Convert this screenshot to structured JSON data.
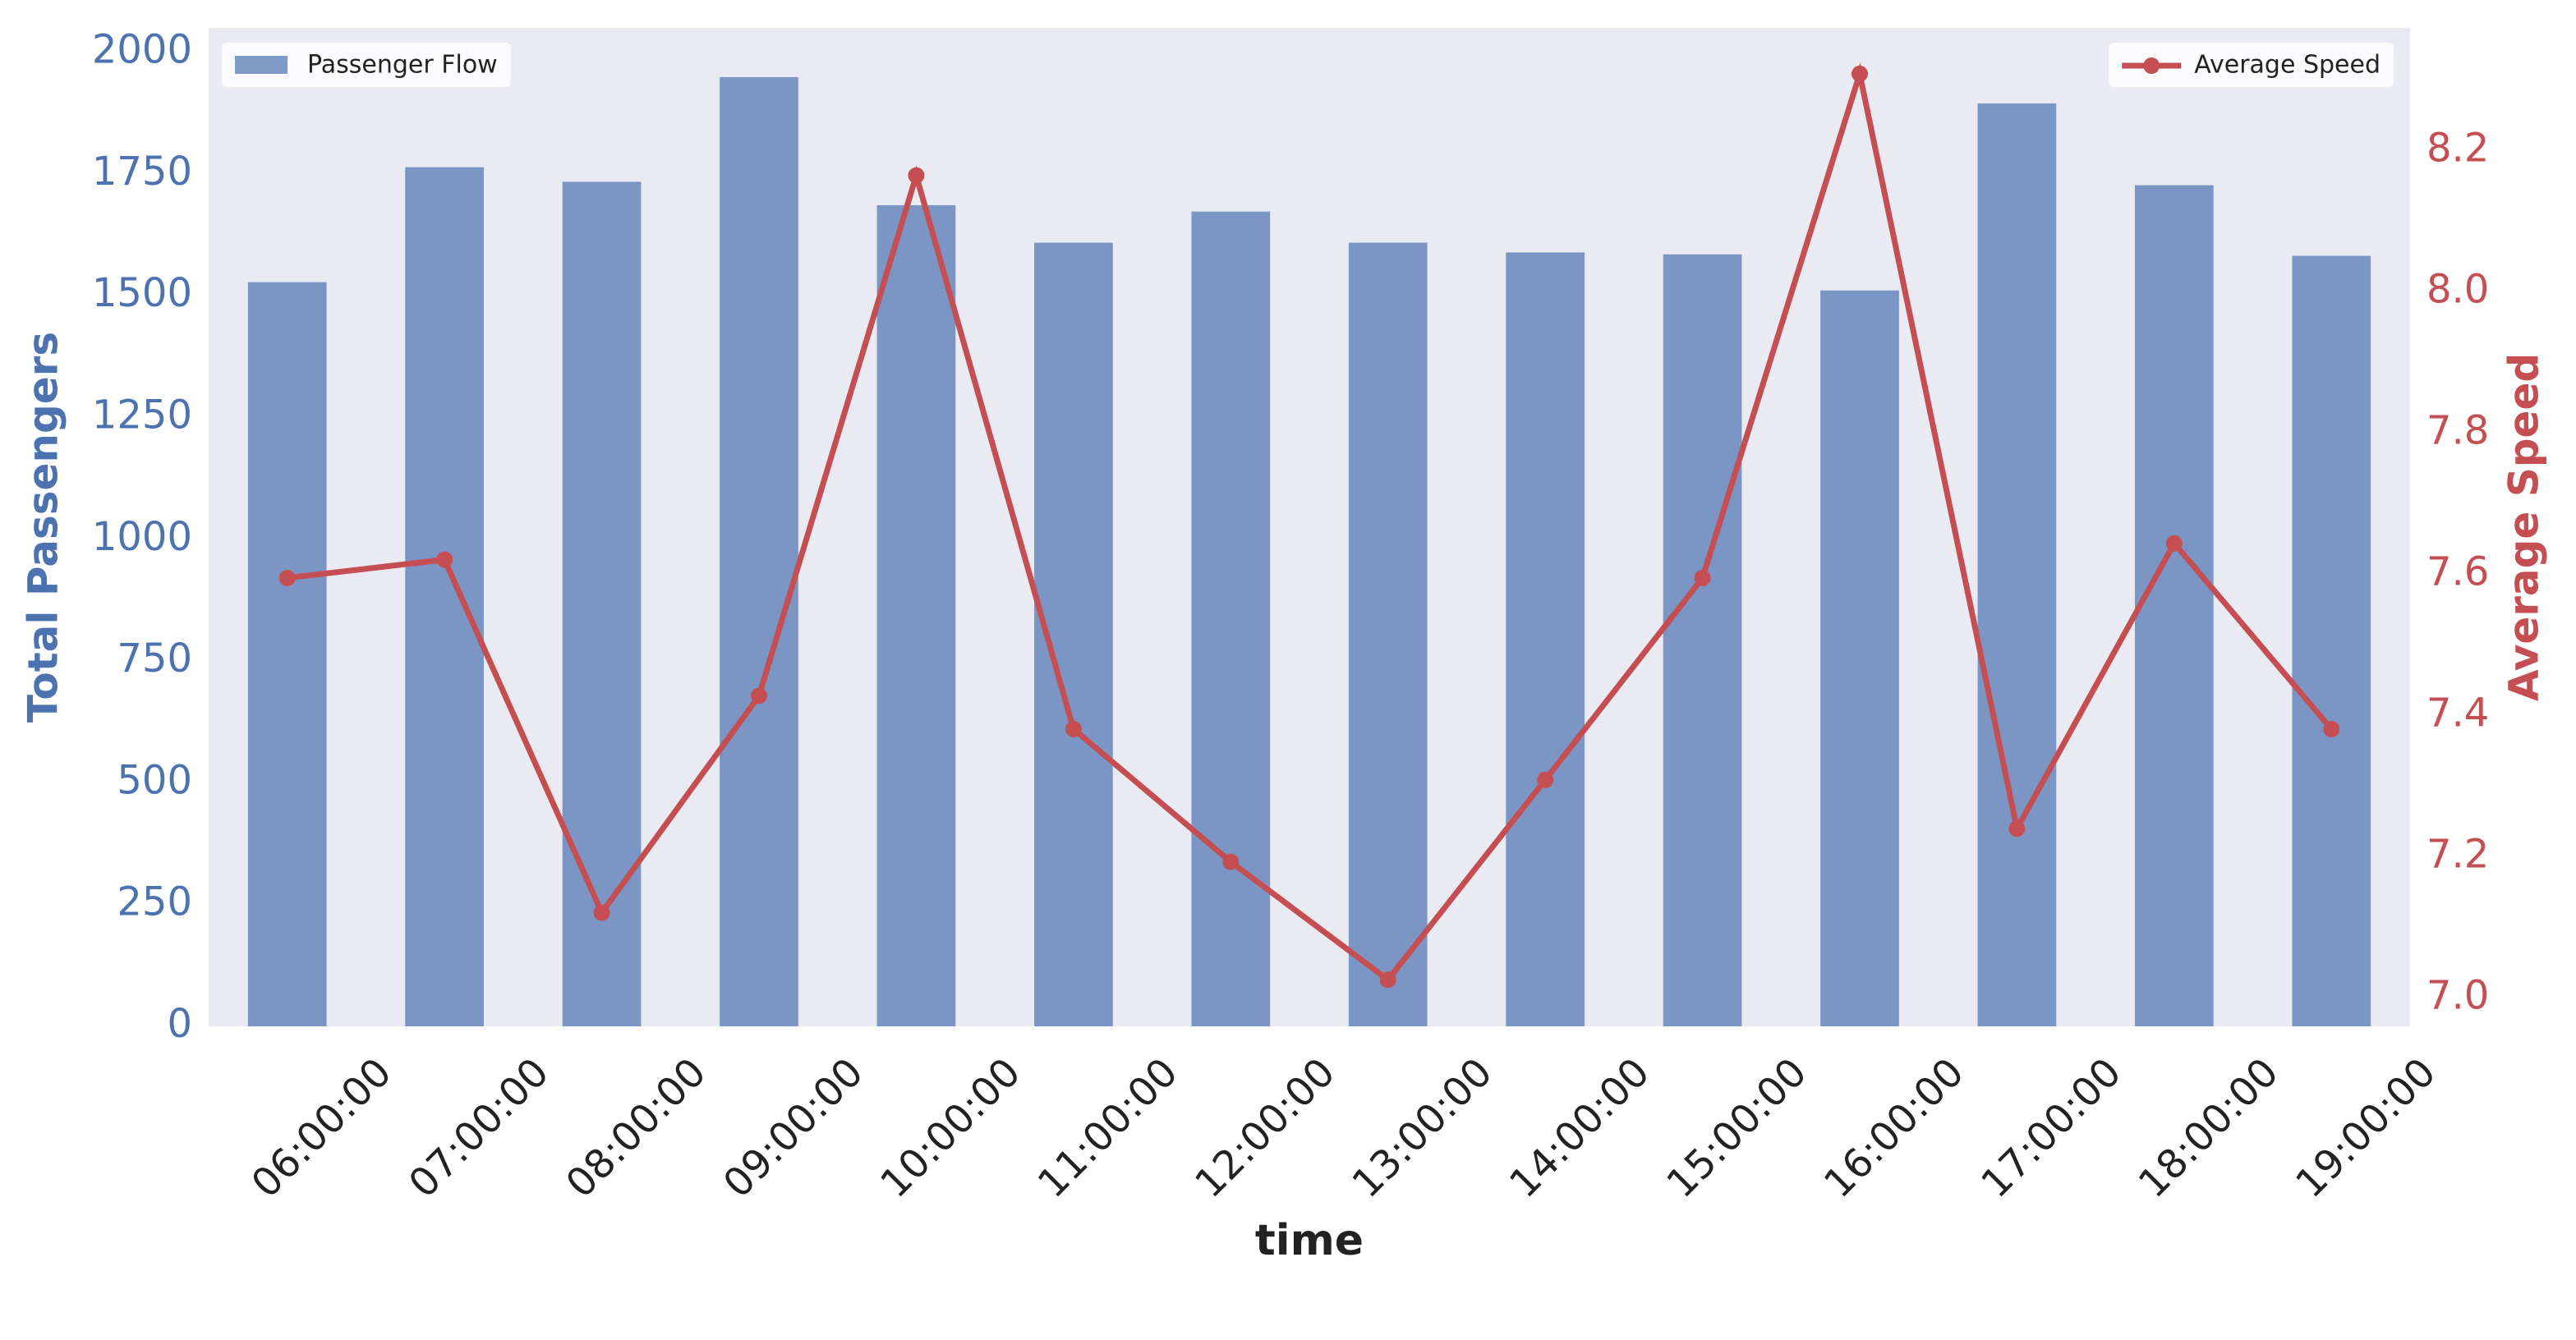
{
  "chart_data": {
    "type": "bar",
    "xlabel": "time",
    "ylabel": "Total Passengers",
    "y2label": "Average Speed",
    "categories": [
      "06:00:00",
      "07:00:00",
      "08:00:00",
      "09:00:00",
      "10:00:00",
      "11:00:00",
      "12:00:00",
      "13:00:00",
      "14:00:00",
      "15:00:00",
      "16:00:00",
      "17:00:00",
      "18:00:00",
      "19:00:00"
    ],
    "series": [
      {
        "name": "Passenger Flow",
        "type": "bar",
        "color": "#4c72b0",
        "alpha": 0.7,
        "legend": "upper left",
        "values": [
          1528,
          1764,
          1734,
          1949,
          1686,
          1609,
          1673,
          1609,
          1589,
          1585,
          1511,
          1895,
          1727,
          1582
        ]
      },
      {
        "name": "Average Speed",
        "type": "line",
        "axis": "y2",
        "color": "#c44e52",
        "legend": "upper right",
        "values": [
          7.595,
          7.621,
          7.121,
          7.428,
          8.165,
          7.381,
          7.193,
          7.026,
          7.309,
          7.595,
          8.309,
          7.24,
          7.644,
          7.381
        ]
      }
    ],
    "ylim": [
      0,
      2050
    ],
    "yticks": [
      0,
      250,
      500,
      750,
      1000,
      1250,
      1500,
      1750,
      2000
    ],
    "y_color": "#4c72b0",
    "y2lim": [
      6.96,
      8.374
    ],
    "y2ticks": [
      {
        "value": 7,
        "label": "7.0"
      },
      7.2,
      7.4,
      7.6,
      7.8,
      {
        "value": 8,
        "label": "8.0"
      },
      8.2
    ],
    "y2_color": "#c44e52",
    "grid": false
  }
}
